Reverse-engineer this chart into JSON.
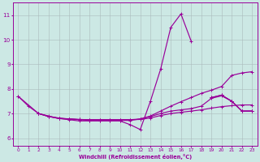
{
  "bg_color": "#cce8e4",
  "line_color": "#990099",
  "grid_color": "#aabbbb",
  "ylabel_values": [
    6,
    7,
    8,
    9,
    10,
    11
  ],
  "xlabel": "Windchill (Refroidissement éolien,°C)",
  "ylim": [
    5.7,
    11.5
  ],
  "xlim": [
    -0.5,
    23.5
  ],
  "tick_color": "#990099",
  "lines": [
    [
      7.7,
      7.3,
      7.0,
      6.9,
      6.8,
      6.75,
      6.7,
      6.7,
      6.7,
      6.7,
      6.7,
      6.55,
      6.35,
      7.5,
      8.8,
      10.5,
      11.05,
      9.95,
      null,
      null,
      null,
      null,
      null,
      null
    ],
    [
      7.7,
      null,
      7.0,
      6.88,
      6.82,
      6.78,
      6.75,
      6.72,
      6.72,
      6.72,
      6.72,
      6.72,
      6.78,
      6.9,
      7.1,
      7.3,
      7.48,
      7.65,
      7.82,
      7.95,
      8.1,
      8.55,
      8.65,
      8.7
    ],
    [
      null,
      null,
      null,
      null,
      null,
      null,
      null,
      null,
      null,
      null,
      null,
      null,
      null,
      null,
      null,
      null,
      null,
      null,
      null,
      7.65,
      7.75,
      7.5,
      7.1,
      7.1
    ],
    [
      null,
      null,
      null,
      null,
      null,
      null,
      null,
      null,
      null,
      null,
      null,
      null,
      null,
      null,
      null,
      null,
      null,
      null,
      null,
      7.65,
      7.75,
      7.5,
      7.1,
      7.1
    ],
    [
      null,
      null,
      7.0,
      6.88,
      6.8,
      6.78,
      6.76,
      6.75,
      6.75,
      6.75,
      6.75,
      6.75,
      6.76,
      6.82,
      6.92,
      7.0,
      7.05,
      7.1,
      7.15,
      7.22,
      7.28,
      7.32,
      7.35,
      7.35
    ],
    [
      null,
      null,
      7.0,
      6.88,
      6.8,
      6.78,
      6.76,
      6.75,
      6.75,
      6.75,
      6.75,
      6.75,
      6.78,
      6.88,
      7.0,
      7.1,
      7.15,
      7.2,
      7.3,
      7.62,
      7.72,
      7.5,
      7.1,
      7.1
    ]
  ],
  "x": [
    0,
    1,
    2,
    3,
    4,
    5,
    6,
    7,
    8,
    9,
    10,
    11,
    12,
    13,
    14,
    15,
    16,
    17,
    18,
    19,
    20,
    21,
    22,
    23
  ]
}
